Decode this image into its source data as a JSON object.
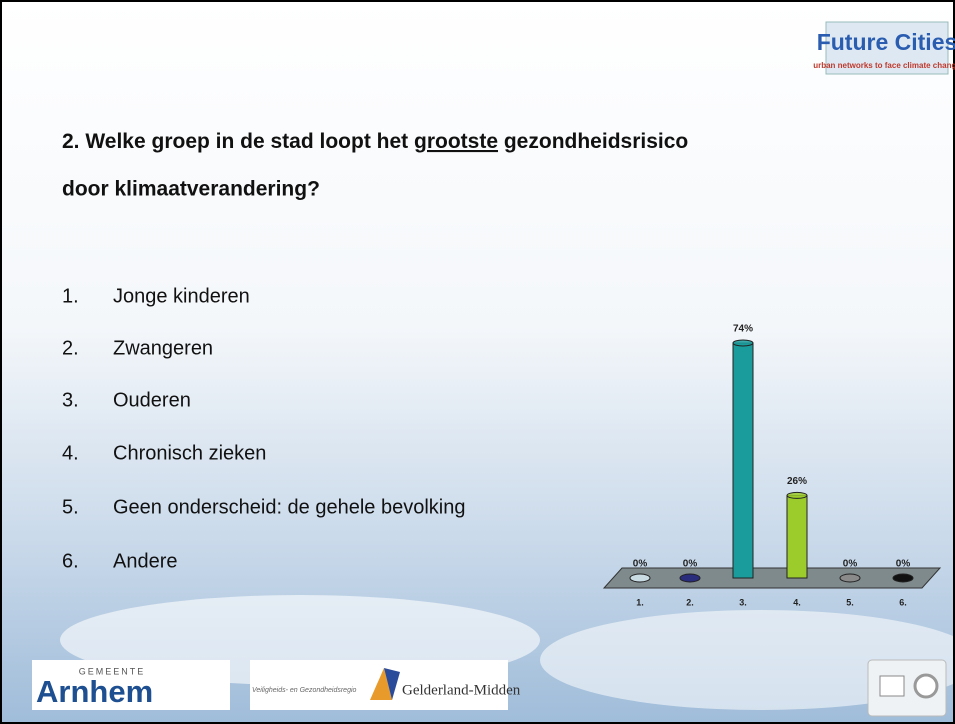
{
  "logo_top": {
    "title": "Future Cities",
    "subtitle": "urban networks to face climate change"
  },
  "question": {
    "before": "2. Welke groep in de stad loopt het",
    "emphasis": "grootste",
    "after": "gezondheidsrisico",
    "line2": "door klimaatverandering?"
  },
  "options": [
    {
      "number": "1.",
      "text": "Jonge kinderen"
    },
    {
      "number": "2.",
      "text": "Zwangeren"
    },
    {
      "number": "3.",
      "text": "Ouderen"
    },
    {
      "number": "4.",
      "text": "Chronisch zieken"
    },
    {
      "number": "5.",
      "text": "Geen onderscheid: de gehele bevolking"
    },
    {
      "number": "6.",
      "text": "Andere"
    }
  ],
  "logos_bottom": {
    "gemeente": "GEMEENTE",
    "arnhem": "Arnhem",
    "region_small": "Veiligheids- en Gezondheidsregio",
    "region": "Gelderland-Midden"
  },
  "chart_data": {
    "type": "bar",
    "categories": [
      "1.",
      "2.",
      "3.",
      "4.",
      "5.",
      "6."
    ],
    "values": [
      0,
      0,
      74,
      26,
      0,
      0
    ],
    "value_labels": [
      "0%",
      "0%",
      "74%",
      "26%",
      "0%",
      "0%"
    ],
    "colors": [
      "#c9dbe3",
      "#2a2c7c",
      "#1b9c9c",
      "#9ccc2c",
      "#8a8a8a",
      "#111111"
    ]
  }
}
